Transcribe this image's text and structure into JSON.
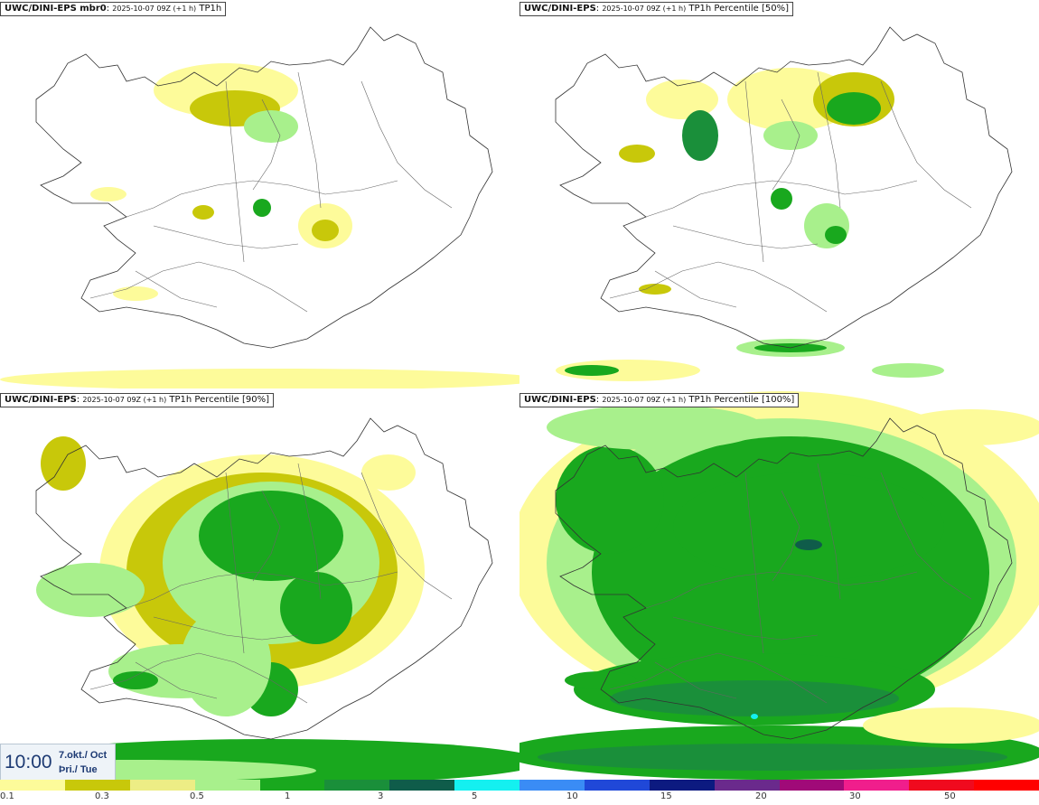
{
  "panels": [
    {
      "model": "UWC/DINI-EPS mbr0",
      "run": "2025-10-07 09Z (+1 h)",
      "field": "TP1h",
      "level": 1
    },
    {
      "model": "UWC/DINI-EPS",
      "run": "2025-10-07 09Z (+1 h)",
      "field": "TP1h Percentile [50%]",
      "level": 0
    },
    {
      "model": "UWC/DINI-EPS",
      "run": "2025-10-07 09Z (+1 h)",
      "field": "TP1h Percentile [90%]",
      "level": 2
    },
    {
      "model": "UWC/DINI-EPS",
      "run": "2025-10-07 09Z (+1 h)",
      "field": "TP1h Percentile [100%]",
      "level": 3
    }
  ],
  "valid": {
    "time": "10:00",
    "date_line1": "7.okt./ Oct",
    "date_line2": "Þri./ Tue"
  },
  "colorbar": {
    "colors": [
      "#fdfb9a",
      "#c8c80a",
      "#eded85",
      "#a8f08c",
      "#19a81e",
      "#1a8f3a",
      "#0f5c4a",
      "#14f0f0",
      "#3a8cf5",
      "#2048d8",
      "#0c1a80",
      "#6a2a8c",
      "#a00a78",
      "#f01e8c",
      "#f00a1e",
      "#ff0000"
    ],
    "labels": [
      "0.1",
      "0.3",
      "0.5",
      "1",
      "3",
      "5",
      "10",
      "15",
      "20",
      "30",
      "50"
    ]
  },
  "legend_colors": {
    "light_yellow": "#fdfb9a",
    "olive": "#c8c80a",
    "light_green": "#a8f08c",
    "green": "#19a81e",
    "dark_green": "#0f5c4a"
  }
}
